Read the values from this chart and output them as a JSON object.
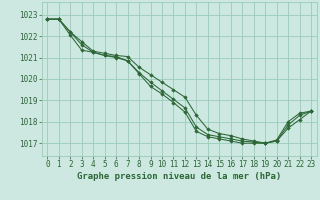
{
  "background_color": "#cce8e0",
  "grid_color": "#99ccbb",
  "line_color": "#2d6637",
  "marker_color": "#2d6637",
  "title": "Graphe pression niveau de la mer (hPa)",
  "title_fontsize": 6.5,
  "tick_fontsize": 5.5,
  "xlim": [
    -0.5,
    23.5
  ],
  "ylim": [
    1016.4,
    1023.6
  ],
  "yticks": [
    1017,
    1018,
    1019,
    1020,
    1021,
    1022,
    1023
  ],
  "xticks": [
    0,
    1,
    2,
    3,
    4,
    5,
    6,
    7,
    8,
    9,
    10,
    11,
    12,
    13,
    14,
    15,
    16,
    17,
    18,
    19,
    20,
    21,
    22,
    23
  ],
  "series": [
    {
      "x": [
        0,
        1,
        2,
        3,
        4,
        5,
        6,
        7,
        8,
        9,
        10,
        11,
        12,
        13,
        14,
        15,
        16,
        17,
        18,
        19,
        20,
        21,
        22,
        23
      ],
      "y": [
        1022.8,
        1022.8,
        1022.2,
        1021.75,
        1021.3,
        1021.2,
        1021.1,
        1021.05,
        1020.55,
        1020.2,
        1019.85,
        1019.5,
        1019.15,
        1018.3,
        1017.65,
        1017.45,
        1017.35,
        1017.2,
        1017.1,
        1017.0,
        1017.15,
        1018.0,
        1018.4,
        1018.5
      ]
    },
    {
      "x": [
        0,
        1,
        2,
        3,
        4,
        5,
        6,
        7,
        8,
        9,
        10,
        11,
        12,
        13,
        14,
        15,
        16,
        17,
        18,
        19,
        20,
        21,
        22,
        23
      ],
      "y": [
        1022.8,
        1022.8,
        1022.2,
        1021.6,
        1021.25,
        1021.1,
        1021.05,
        1020.85,
        1020.3,
        1019.85,
        1019.45,
        1019.05,
        1018.65,
        1017.75,
        1017.4,
        1017.3,
        1017.2,
        1017.1,
        1017.05,
        1017.0,
        1017.1,
        1017.85,
        1018.3,
        1018.5
      ]
    },
    {
      "x": [
        0,
        1,
        2,
        3,
        4,
        5,
        6,
        7,
        8,
        9,
        10,
        11,
        12,
        13,
        14,
        15,
        16,
        17,
        18,
        19,
        20,
        21,
        22,
        23
      ],
      "y": [
        1022.8,
        1022.8,
        1022.05,
        1021.35,
        1021.25,
        1021.1,
        1021.0,
        1020.85,
        1020.25,
        1019.65,
        1019.3,
        1018.9,
        1018.45,
        1017.55,
        1017.3,
        1017.2,
        1017.1,
        1017.0,
        1017.0,
        1017.0,
        1017.1,
        1017.7,
        1018.1,
        1018.5
      ]
    }
  ]
}
